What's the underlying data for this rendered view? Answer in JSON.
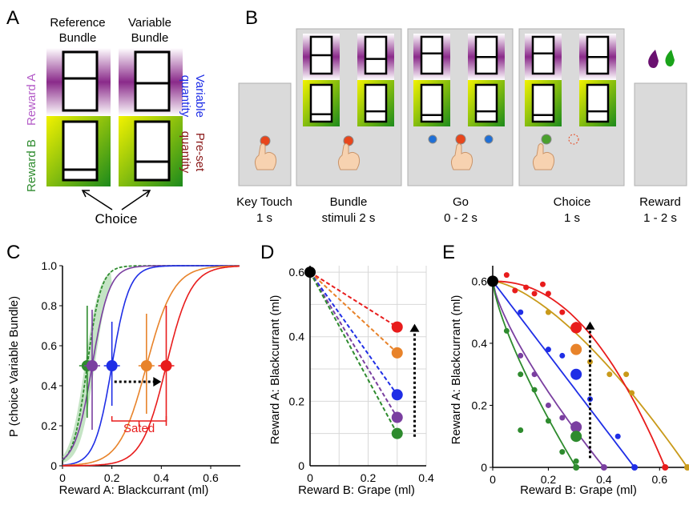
{
  "panels": {
    "A": {
      "letter": "A",
      "ref_title_1": "Reference",
      "ref_title_2": "Bundle",
      "var_title_1": "Variable",
      "var_title_2": "Bundle",
      "left_label_green": "Reward B",
      "left_label_purple": "Reward A",
      "right_label_blue_1": "Variable",
      "right_label_blue_2": "quantity",
      "right_label_red_1": "Pre-set",
      "right_label_red_2": "quantity",
      "choice_label": "Choice"
    },
    "B": {
      "letter": "B",
      "phases": [
        {
          "line1": "Key Touch",
          "line2": "1 s"
        },
        {
          "line1": "Bundle",
          "line2": "stimuli 2 s"
        },
        {
          "line1": "Go",
          "line2": "0 - 2 s"
        },
        {
          "line1": "Choice",
          "line2": "1 s"
        },
        {
          "line1": "Reward",
          "line2": "1 - 2 s"
        }
      ]
    },
    "C": {
      "letter": "C",
      "ylabel": "P (choice Variable Bundle)",
      "xlabel": "Reward A: Blackcurrant (ml)",
      "xticks": [
        "0",
        "0.2",
        "0.4",
        "0.6"
      ],
      "yticks": [
        "0",
        "0.2",
        "0.4",
        "0.6",
        "0.8",
        "1.0"
      ],
      "annotation": "Sated"
    },
    "D": {
      "letter": "D",
      "ylabel": "Reward A: Blackcurrant (ml)",
      "xlabel": "Reward B: Grape (ml)",
      "xticks": [
        "0",
        "0.2",
        "0.4"
      ],
      "yticks": [
        "0",
        "0.2",
        "0.4",
        "0.6"
      ]
    },
    "E": {
      "letter": "E",
      "ylabel": "Reward A: Blackcurrant (ml)",
      "xlabel": "Reward B: Grape (ml)",
      "xticks": [
        "0",
        "0.2",
        "0.4",
        "0.6"
      ],
      "yticks": [
        "0",
        "0.2",
        "0.4",
        "0.6"
      ]
    }
  },
  "colors": {
    "green": "#2e8b2e",
    "purple": "#7a3fa0",
    "blue": "#1f2ee6",
    "orange": "#e8832a",
    "red": "#e81c1c",
    "gold": "#c99a1a"
  },
  "chart_data": [
    {
      "panel": "C",
      "type": "line",
      "xlim": [
        0,
        0.72
      ],
      "ylim": [
        0,
        1.0
      ],
      "series": [
        {
          "color": "green",
          "midpoint_x": 0.1,
          "midpoint_y": 0.5
        },
        {
          "color": "purple",
          "midpoint_x": 0.12,
          "midpoint_y": 0.5
        },
        {
          "color": "blue",
          "midpoint_x": 0.2,
          "midpoint_y": 0.5
        },
        {
          "color": "orange",
          "midpoint_x": 0.34,
          "midpoint_y": 0.5
        },
        {
          "color": "red",
          "midpoint_x": 0.42,
          "midpoint_y": 0.5
        }
      ]
    },
    {
      "panel": "D",
      "type": "line",
      "xlim": [
        0,
        0.4
      ],
      "ylim": [
        0,
        0.62
      ],
      "origin": {
        "x": 0,
        "y": 0.6
      },
      "series": [
        {
          "color": "red",
          "x": 0.3,
          "y": 0.43
        },
        {
          "color": "orange",
          "x": 0.3,
          "y": 0.35
        },
        {
          "color": "blue",
          "x": 0.3,
          "y": 0.22
        },
        {
          "color": "purple",
          "x": 0.3,
          "y": 0.15
        },
        {
          "color": "green",
          "x": 0.3,
          "y": 0.1
        }
      ]
    },
    {
      "panel": "E",
      "type": "scatter",
      "xlim": [
        0,
        0.7
      ],
      "ylim": [
        0,
        0.65
      ],
      "origin": {
        "x": 0,
        "y": 0.6
      },
      "series": [
        {
          "color": "red",
          "mean": {
            "x": 0.3,
            "y": 0.45
          }
        },
        {
          "color": "orange",
          "mean": {
            "x": 0.3,
            "y": 0.38
          }
        },
        {
          "color": "blue",
          "mean": {
            "x": 0.3,
            "y": 0.3
          }
        },
        {
          "color": "purple",
          "mean": {
            "x": 0.3,
            "y": 0.13
          }
        },
        {
          "color": "green",
          "mean": {
            "x": 0.3,
            "y": 0.1
          }
        }
      ]
    }
  ]
}
